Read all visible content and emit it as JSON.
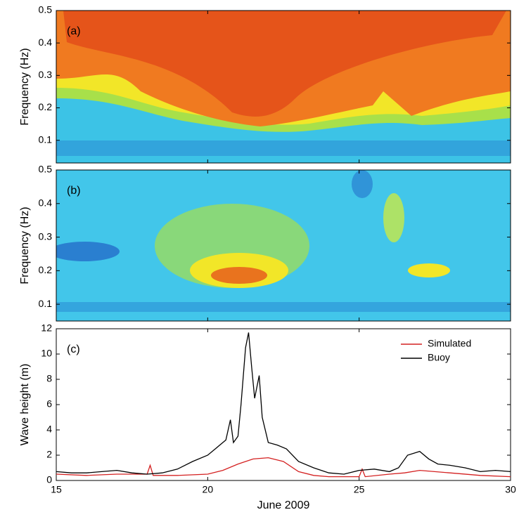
{
  "chart_data": [
    {
      "type": "heatmap",
      "label": "(a)",
      "ylabel": "Frequency (Hz)",
      "xlim": [
        15,
        30
      ],
      "xticks": [
        15,
        20,
        25,
        30
      ],
      "ylim": [
        0.03,
        0.5
      ],
      "yticks": [
        0.1,
        0.2,
        0.3,
        0.4,
        0.5
      ]
    },
    {
      "type": "heatmap",
      "label": "(b)",
      "ylabel": "Frequency (Hz)",
      "xlim": [
        15,
        30
      ],
      "xticks": [
        15,
        20,
        25,
        30
      ],
      "ylim": [
        0.05,
        0.5
      ],
      "yticks": [
        0.1,
        0.2,
        0.3,
        0.4,
        0.5
      ]
    },
    {
      "type": "line",
      "label": "(c)",
      "xlabel": "June 2009",
      "ylabel": "Wave height (m)",
      "xlim": [
        15,
        30
      ],
      "xticks": [
        15,
        20,
        25,
        30
      ],
      "ylim": [
        0,
        12
      ],
      "yticks": [
        0,
        2,
        4,
        6,
        8,
        10,
        12
      ],
      "legend": "upper right",
      "series": [
        {
          "name": "Simulated",
          "color": "#d42020",
          "x": [
            15,
            16,
            17,
            18,
            18.1,
            18.2,
            19,
            20,
            20.5,
            21,
            21.5,
            22,
            22.5,
            23,
            23.5,
            24,
            25,
            25.1,
            25.2,
            26,
            26.5,
            27,
            28,
            29,
            30
          ],
          "values": [
            0.5,
            0.4,
            0.5,
            0.5,
            1.2,
            0.4,
            0.4,
            0.5,
            0.8,
            1.3,
            1.7,
            1.8,
            1.5,
            0.7,
            0.4,
            0.3,
            0.3,
            0.9,
            0.3,
            0.5,
            0.6,
            0.8,
            0.6,
            0.4,
            0.3
          ]
        },
        {
          "name": "Buoy",
          "color": "#000000",
          "x": [
            15,
            15.5,
            16,
            16.5,
            17,
            17.5,
            18,
            18.5,
            19,
            19.5,
            20,
            20.3,
            20.6,
            20.75,
            20.85,
            21,
            21.1,
            21.25,
            21.35,
            21.45,
            21.55,
            21.7,
            21.8,
            22,
            22.3,
            22.6,
            23,
            23.5,
            24,
            24.5,
            25,
            25.5,
            26,
            26.3,
            26.6,
            27,
            27.3,
            27.6,
            28,
            28.5,
            29,
            29.5,
            30
          ],
          "values": [
            0.7,
            0.6,
            0.6,
            0.7,
            0.8,
            0.6,
            0.5,
            0.6,
            0.9,
            1.5,
            2.0,
            2.6,
            3.2,
            4.8,
            3.0,
            3.5,
            6,
            10.5,
            11.7,
            9,
            6.5,
            8.3,
            5,
            3,
            2.8,
            2.5,
            1.5,
            1.0,
            0.6,
            0.5,
            0.8,
            0.9,
            0.7,
            1.0,
            2.0,
            2.3,
            1.7,
            1.3,
            1.2,
            1.0,
            0.7,
            0.8,
            0.7
          ]
        }
      ]
    }
  ]
}
